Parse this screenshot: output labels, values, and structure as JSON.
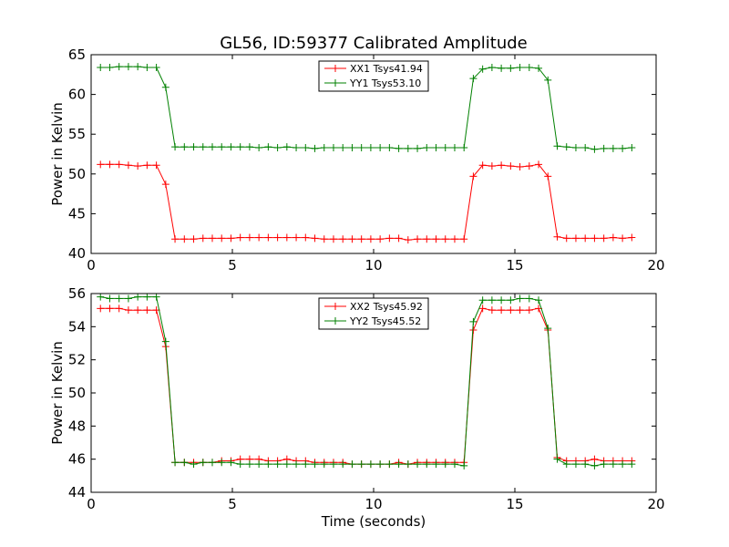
{
  "page": {
    "title": "GL56, ID:59377 Calibrated Amplitude"
  },
  "colors": {
    "red": "#ff0000",
    "green": "#008000"
  },
  "chart_data": [
    {
      "type": "line",
      "ylabel": "Power in Kelvin",
      "xlabel": "",
      "xlim": [
        0,
        20
      ],
      "ylim": [
        40,
        65
      ],
      "x_ticks": [
        "0",
        "5",
        "10",
        "15",
        "20"
      ],
      "y_ticks": [
        "40",
        "45",
        "50",
        "55",
        "60",
        "65"
      ],
      "legend_position": "top-center",
      "x": [
        0.33,
        0.66,
        0.99,
        1.32,
        1.65,
        1.98,
        2.31,
        2.64,
        2.97,
        3.3,
        3.63,
        3.96,
        4.29,
        4.62,
        4.95,
        5.28,
        5.61,
        5.94,
        6.27,
        6.6,
        6.93,
        7.26,
        7.59,
        7.92,
        8.25,
        8.58,
        8.91,
        9.24,
        9.57,
        9.9,
        10.23,
        10.56,
        10.89,
        11.22,
        11.55,
        11.88,
        12.21,
        12.54,
        12.87,
        13.2,
        13.53,
        13.86,
        14.19,
        14.52,
        14.85,
        15.18,
        15.51,
        15.84,
        16.17,
        16.5,
        16.83,
        17.16,
        17.49,
        17.82,
        18.15,
        18.48,
        18.81,
        19.14
      ],
      "series": [
        {
          "name": "XX1 Tsys41.94",
          "color": "red",
          "values": [
            51.2,
            51.2,
            51.2,
            51.1,
            51.0,
            51.1,
            51.1,
            48.7,
            41.8,
            41.8,
            41.8,
            41.9,
            41.9,
            41.9,
            41.9,
            42.0,
            42.0,
            42.0,
            42.0,
            42.0,
            42.0,
            42.0,
            42.0,
            41.9,
            41.8,
            41.8,
            41.8,
            41.8,
            41.8,
            41.8,
            41.8,
            41.9,
            41.9,
            41.7,
            41.8,
            41.8,
            41.8,
            41.8,
            41.8,
            41.8,
            49.7,
            51.1,
            51.0,
            51.1,
            51.0,
            50.9,
            51.0,
            51.2,
            49.7,
            42.1,
            41.9,
            41.9,
            41.9,
            41.9,
            41.9,
            42.0,
            41.9,
            42.0
          ]
        },
        {
          "name": "YY1 Tsys53.10",
          "color": "green",
          "values": [
            63.4,
            63.4,
            63.5,
            63.5,
            63.5,
            63.4,
            63.4,
            60.9,
            53.4,
            53.4,
            53.4,
            53.4,
            53.4,
            53.4,
            53.4,
            53.4,
            53.4,
            53.3,
            53.4,
            53.3,
            53.4,
            53.3,
            53.3,
            53.2,
            53.3,
            53.3,
            53.3,
            53.3,
            53.3,
            53.3,
            53.3,
            53.3,
            53.2,
            53.2,
            53.2,
            53.3,
            53.3,
            53.3,
            53.3,
            53.3,
            62.0,
            63.2,
            63.4,
            63.3,
            63.3,
            63.4,
            63.4,
            63.3,
            61.8,
            53.5,
            53.4,
            53.3,
            53.3,
            53.1,
            53.2,
            53.2,
            53.2,
            53.3
          ]
        }
      ]
    },
    {
      "type": "line",
      "ylabel": "Power in Kelvin",
      "xlabel": "Time (seconds)",
      "xlim": [
        0,
        20
      ],
      "ylim": [
        44,
        56
      ],
      "x_ticks": [
        "0",
        "5",
        "10",
        "15",
        "20"
      ],
      "y_ticks": [
        "44",
        "46",
        "48",
        "50",
        "52",
        "54",
        "56"
      ],
      "legend_position": "top-center",
      "x": [
        0.33,
        0.66,
        0.99,
        1.32,
        1.65,
        1.98,
        2.31,
        2.64,
        2.97,
        3.3,
        3.63,
        3.96,
        4.29,
        4.62,
        4.95,
        5.28,
        5.61,
        5.94,
        6.27,
        6.6,
        6.93,
        7.26,
        7.59,
        7.92,
        8.25,
        8.58,
        8.91,
        9.24,
        9.57,
        9.9,
        10.23,
        10.56,
        10.89,
        11.22,
        11.55,
        11.88,
        12.21,
        12.54,
        12.87,
        13.2,
        13.53,
        13.86,
        14.19,
        14.52,
        14.85,
        15.18,
        15.51,
        15.84,
        16.17,
        16.5,
        16.83,
        17.16,
        17.49,
        17.82,
        18.15,
        18.48,
        18.81,
        19.14
      ],
      "series": [
        {
          "name": "XX2 Tsys45.92",
          "color": "red",
          "values": [
            55.1,
            55.1,
            55.1,
            55.0,
            55.0,
            55.0,
            55.0,
            52.8,
            45.8,
            45.8,
            45.8,
            45.8,
            45.8,
            45.9,
            45.9,
            46.0,
            46.0,
            46.0,
            45.9,
            45.9,
            46.0,
            45.9,
            45.9,
            45.8,
            45.8,
            45.8,
            45.8,
            45.7,
            45.7,
            45.7,
            45.7,
            45.7,
            45.8,
            45.7,
            45.8,
            45.8,
            45.8,
            45.8,
            45.8,
            45.8,
            53.8,
            55.1,
            55.0,
            55.0,
            55.0,
            55.0,
            55.0,
            55.1,
            53.8,
            46.1,
            45.9,
            45.9,
            45.9,
            46.0,
            45.9,
            45.9,
            45.9,
            45.9
          ]
        },
        {
          "name": "YY2 Tsys45.52",
          "color": "green",
          "values": [
            55.8,
            55.7,
            55.7,
            55.7,
            55.8,
            55.8,
            55.8,
            53.1,
            45.8,
            45.8,
            45.7,
            45.8,
            45.8,
            45.8,
            45.8,
            45.7,
            45.7,
            45.7,
            45.7,
            45.7,
            45.7,
            45.7,
            45.7,
            45.7,
            45.7,
            45.7,
            45.7,
            45.7,
            45.7,
            45.7,
            45.7,
            45.7,
            45.7,
            45.7,
            45.7,
            45.7,
            45.7,
            45.7,
            45.7,
            45.6,
            54.3,
            55.6,
            55.6,
            55.6,
            55.6,
            55.7,
            55.7,
            55.6,
            53.9,
            46.0,
            45.7,
            45.7,
            45.7,
            45.6,
            45.7,
            45.7,
            45.7,
            45.7
          ]
        }
      ]
    }
  ]
}
